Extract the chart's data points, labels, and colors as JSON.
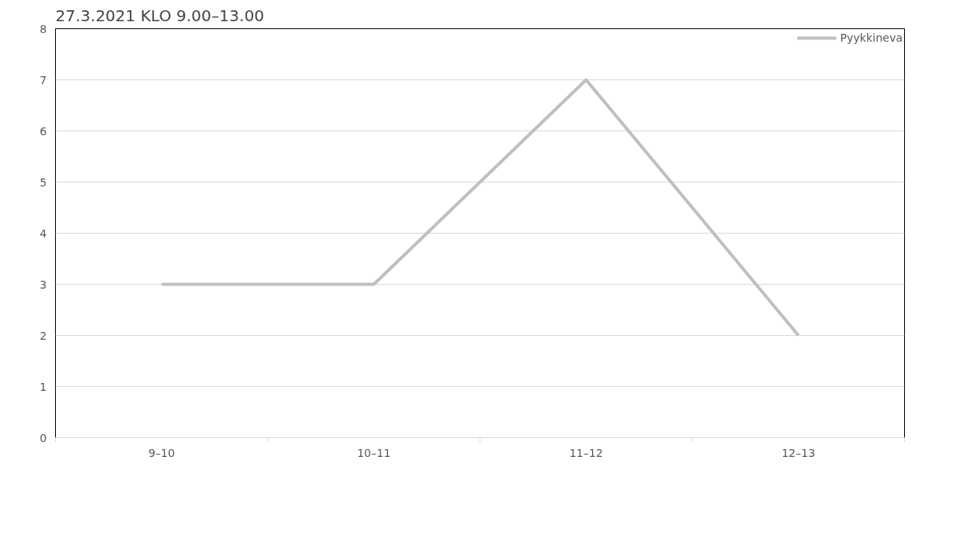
{
  "chart_data": {
    "type": "line",
    "title": "27.3.2021 KLO 9.00–13.00",
    "categories": [
      "9–10",
      "10–11",
      "11–12",
      "12–13"
    ],
    "series": [
      {
        "name": "Pyykkineva",
        "color": "#bfbfbf",
        "values": [
          3,
          3,
          7,
          2
        ]
      }
    ],
    "ylim": [
      0,
      8
    ],
    "yticks": [
      0,
      1,
      2,
      3,
      4,
      5,
      6,
      7,
      8
    ],
    "grid": "y",
    "legend": "top right",
    "marker": "none",
    "line_style": "solid"
  }
}
